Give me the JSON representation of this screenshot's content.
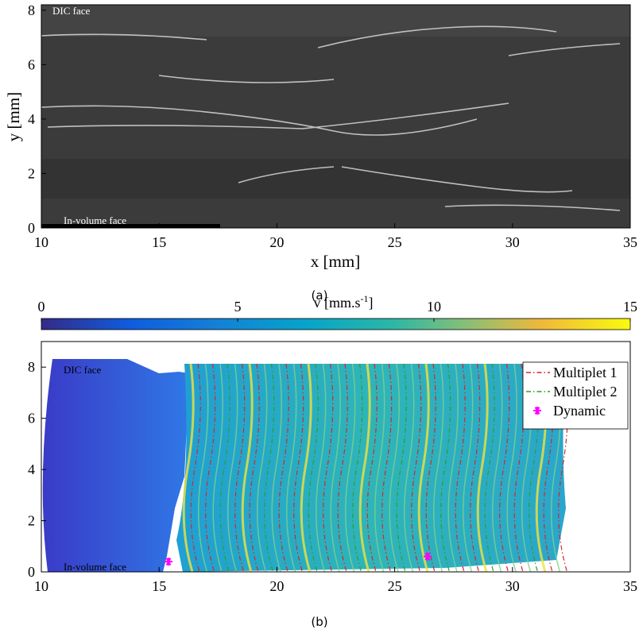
{
  "chart_data": [
    {
      "type": "image",
      "xlabel": "x [mm]",
      "ylabel": "y [mm]",
      "xlim": [
        10,
        35
      ],
      "ylim": [
        0,
        8.2
      ],
      "xticks": [
        10,
        15,
        20,
        25,
        30,
        35
      ],
      "yticks": [
        0,
        2,
        4,
        6,
        8
      ],
      "annotations": [
        "DIC face",
        "In-volume face"
      ],
      "caption": "(a)"
    },
    {
      "type": "scatter",
      "xlim": [
        10,
        35
      ],
      "ylim": [
        0,
        9
      ],
      "xticks": [
        10,
        15,
        20,
        25,
        30,
        35
      ],
      "yticks": [
        0,
        2,
        4,
        6,
        8
      ],
      "annotations": [
        "DIC face",
        "In-volume face"
      ],
      "caption": "(b)",
      "colorbar": {
        "label": {
          "text": "v [mm.s",
          "superscript": "-1",
          "suffix": "]"
        },
        "lim": [
          0,
          15
        ],
        "ticks": [
          0,
          5,
          10,
          15
        ]
      },
      "legend": "upper right",
      "series": [
        {
          "name": "Multiplet 1",
          "color": "#d62728",
          "style": "dash-dot"
        },
        {
          "name": "Multiplet 2",
          "color": "#2ca02c",
          "style": "dash-dot"
        },
        {
          "name": "Dynamic",
          "color": "#ff00ff",
          "marker": "asterisk",
          "x": [
            15.4,
            26.4
          ],
          "values": [
            0.4,
            0.6
          ]
        }
      ]
    }
  ]
}
